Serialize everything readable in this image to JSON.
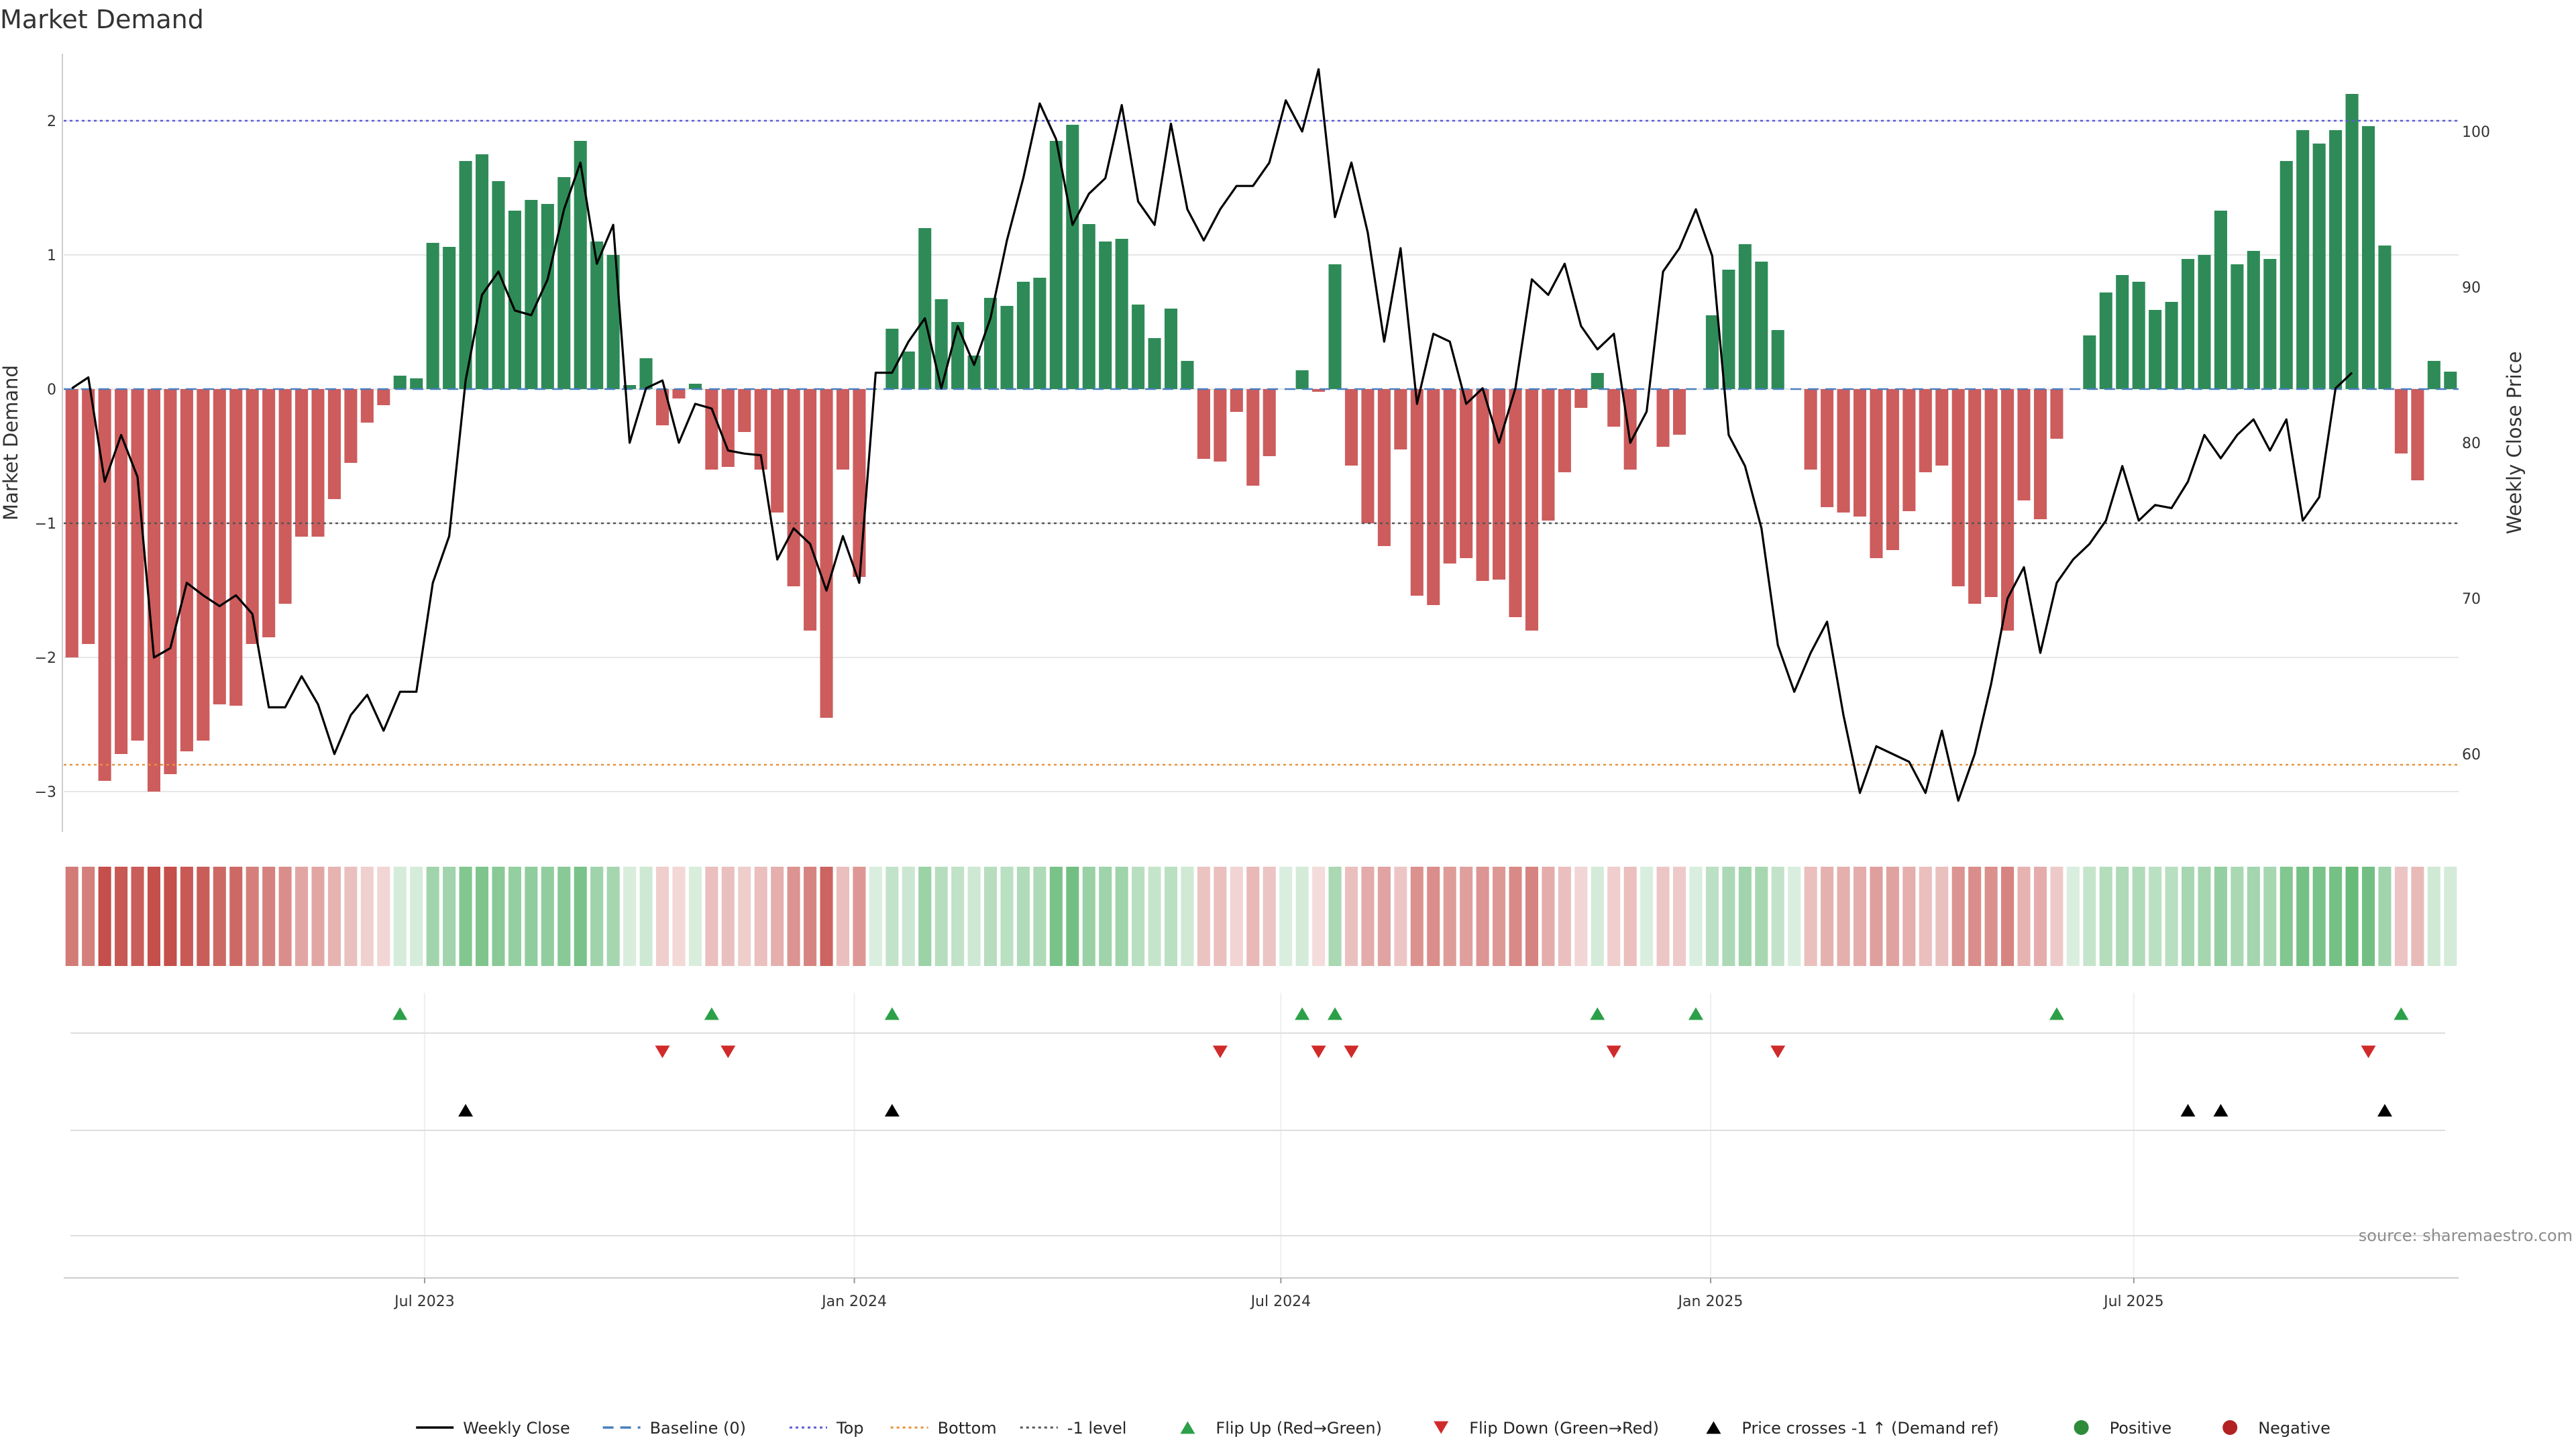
{
  "chart_data": {
    "type": "bar",
    "title": "Market Demand",
    "ylabel_left": "Market Demand",
    "ylabel_right": "Weekly Close Price",
    "ylim_left": [
      -3.3,
      2.5
    ],
    "yticks_left": [
      -3,
      -2,
      -1,
      0,
      1,
      2
    ],
    "ytick_labels_left": [
      "−3",
      "−2",
      "−1",
      "0",
      "1",
      "2"
    ],
    "ylim_right": [
      55,
      105
    ],
    "yticks_right": [
      60,
      70,
      80,
      90,
      100
    ],
    "ytick_labels_right": [
      "60",
      "70",
      "80",
      "90",
      "100"
    ],
    "x_labels": [
      "Jul 2023",
      "Jan 2024",
      "Jul 2024",
      "Jan 2025",
      "Jul 2025"
    ],
    "x_label_positions_week": [
      21.5,
      47.7,
      73.7,
      99.9,
      125.7
    ],
    "reference_lines": {
      "top": 2.0,
      "bottom": -2.8,
      "minus_one": -1.0,
      "baseline": 0
    },
    "demand": [
      -2.0,
      -1.9,
      -2.92,
      -2.72,
      -2.62,
      -3.0,
      -2.87,
      -2.7,
      -2.62,
      -2.35,
      -2.36,
      -1.9,
      -1.85,
      -1.6,
      -1.1,
      -1.1,
      -0.82,
      -0.55,
      -0.25,
      -0.12,
      0.1,
      0.08,
      1.09,
      1.06,
      1.7,
      1.75,
      1.55,
      1.33,
      1.41,
      1.38,
      1.58,
      1.85,
      1.1,
      1.0,
      0.03,
      0.23,
      -0.27,
      -0.07,
      0.04,
      -0.6,
      -0.58,
      -0.32,
      -0.6,
      -0.92,
      -1.47,
      -1.8,
      -2.45,
      -0.6,
      -1.4,
      0,
      0.45,
      0.28,
      1.2,
      0.67,
      0.5,
      0.25,
      0.68,
      0.62,
      0.8,
      0.83,
      1.85,
      1.97,
      1.23,
      1.1,
      1.12,
      0.63,
      0.38,
      0.6,
      0.21,
      -0.52,
      -0.54,
      -0.17,
      -0.72,
      -0.5,
      0,
      0.14,
      -0.02,
      0.93,
      -0.57,
      -1.0,
      -1.17,
      -0.45,
      -1.54,
      -1.61,
      -1.3,
      -1.26,
      -1.43,
      -1.42,
      -1.7,
      -1.8,
      -0.98,
      -0.62,
      -0.14,
      0.12,
      -0.28,
      -0.6,
      0,
      -0.43,
      -0.34,
      0,
      0.55,
      0.89,
      1.08,
      0.95,
      0.44,
      0,
      -0.6,
      -0.88,
      -0.92,
      -0.95,
      -1.26,
      -1.2,
      -0.91,
      -0.62,
      -0.57,
      -1.47,
      -1.6,
      -1.55,
      -1.8,
      -0.83,
      -0.97,
      -0.37,
      0,
      0.4,
      0.72,
      0.85,
      0.8,
      0.59,
      0.65,
      0.97,
      1.0,
      1.33,
      0.93,
      1.03,
      0.97,
      1.7,
      1.93,
      1.83,
      1.93,
      2.2,
      1.96,
      1.07,
      -0.48,
      -0.68,
      0.21,
      0.13
    ],
    "weekly_close": [
      83.5,
      84.2,
      77.5,
      80.5,
      77.8,
      66.2,
      66.8,
      71.0,
      70.2,
      69.5,
      70.2,
      69.0,
      63.0,
      63.0,
      65.0,
      63.2,
      60.0,
      62.5,
      63.8,
      61.5,
      64.0,
      64.0,
      71.0,
      74.0,
      84.0,
      89.5,
      91.0,
      88.5,
      88.2,
      90.5,
      95.0,
      98.0,
      91.5,
      94.0,
      80.0,
      83.5,
      84.0,
      80.0,
      82.5,
      82.2,
      79.5,
      79.3,
      79.2,
      72.5,
      74.5,
      73.5,
      70.5,
      74.0,
      71.0,
      84.5,
      84.5,
      86.5,
      88.0,
      83.5,
      87.5,
      85.0,
      88.0,
      93.0,
      97.0,
      101.8,
      99.5,
      94.0,
      96.0,
      97.0,
      101.7,
      95.5,
      94.0,
      100.5,
      95.0,
      93.0,
      95.0,
      96.5,
      96.5,
      98.0,
      102.0,
      100.0,
      104.0,
      94.5,
      98.0,
      93.5,
      86.5,
      92.5,
      82.5,
      87.0,
      86.5,
      82.5,
      83.5,
      80.0,
      83.5,
      90.5,
      89.5,
      91.5,
      87.5,
      86.0,
      87.0,
      80.0,
      82.0,
      91.0,
      92.5,
      95.0,
      92.0,
      80.5,
      78.5,
      74.5,
      67.0,
      64.0,
      66.5,
      68.5,
      62.5,
      57.5,
      60.5,
      60.0,
      59.5,
      57.5,
      61.5,
      57.0,
      60.0,
      64.5,
      70.0,
      72.0,
      66.5,
      71.0,
      72.5,
      73.5,
      75.0,
      78.5,
      75.0,
      76.0,
      75.8,
      77.5,
      80.5,
      79.0,
      80.5,
      81.5,
      79.5,
      81.5,
      75.0,
      76.5,
      83.5,
      84.5
    ],
    "flip_up_weeks": [
      20,
      39,
      50,
      75,
      77,
      93,
      99,
      121,
      142
    ],
    "flip_down_weeks": [
      36,
      40,
      70,
      76,
      78,
      94,
      104,
      140
    ],
    "price_cross_weeks": [
      24,
      50,
      129,
      131,
      141
    ]
  },
  "source": "source: sharemaestro.com",
  "legend": [
    {
      "label": "Weekly Close",
      "kind": "line",
      "color": "#000000"
    },
    {
      "label": "Baseline (0)",
      "kind": "dashed",
      "color": "#4a7fc0"
    },
    {
      "label": "Top",
      "kind": "dotted",
      "color": "#5b5bd6"
    },
    {
      "label": "Bottom",
      "kind": "dotted",
      "color": "#e8923d"
    },
    {
      "label": "-1 level",
      "kind": "dotted",
      "color": "#555555"
    },
    {
      "label": "Flip Up (Red→Green)",
      "kind": "tri-up",
      "color": "#2ca048"
    },
    {
      "label": "Flip Down (Green→Red)",
      "kind": "tri-down",
      "color": "#d02b2b"
    },
    {
      "label": "Price crosses -1 ↑ (Demand ref)",
      "kind": "tri-up",
      "color": "#000000"
    },
    {
      "label": "Positive",
      "kind": "dot",
      "color": "#2e8b3a"
    },
    {
      "label": "Negative",
      "kind": "dot",
      "color": "#b22222"
    }
  ],
  "colors": {
    "positive_bar": "#2e8b57",
    "negative_bar": "#cd5c5c",
    "price_line": "#000000",
    "grid": "#e6e6e6",
    "axis": "#cccccc"
  }
}
